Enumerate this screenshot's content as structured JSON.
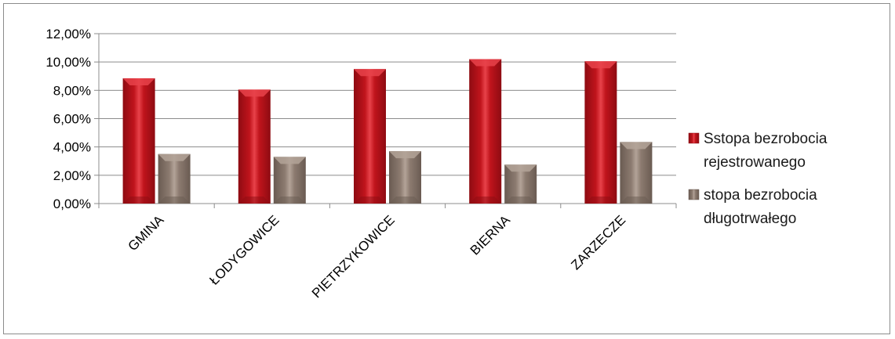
{
  "chart_data": {
    "type": "bar",
    "categories": [
      "GMINA",
      "ŁODYGOWICE",
      "PIETRZYKOWICE",
      "BIERNA",
      "ZARZECZE"
    ],
    "series": [
      {
        "name": "Sstopa bezrobocia rejestrowanego",
        "name_lines": [
          "Sstopa bezrobocia",
          "rejestrowanego"
        ],
        "values": [
          8.85,
          8.05,
          9.5,
          10.2,
          10.05
        ],
        "color": "#c0141c",
        "color_light": "#e8424a",
        "color_dark": "#8e0b12"
      },
      {
        "name": "stopa bezrobocia długotrwałego",
        "name_lines": [
          "stopa bezrobocia",
          "długotrwałego"
        ],
        "values": [
          3.5,
          3.3,
          3.7,
          2.75,
          4.35
        ],
        "color": "#8c7b70",
        "color_light": "#b3a398",
        "color_dark": "#6a5b52"
      }
    ],
    "ylim": [
      0,
      12
    ],
    "yticks": [
      0,
      2,
      4,
      6,
      8,
      10,
      12
    ],
    "ytick_labels": [
      "0,00%",
      "2,00%",
      "4,00%",
      "6,00%",
      "8,00%",
      "10,00%",
      "12,00%"
    ],
    "title": "",
    "xlabel": "",
    "ylabel": "",
    "grid": true,
    "legend_position": "right"
  }
}
